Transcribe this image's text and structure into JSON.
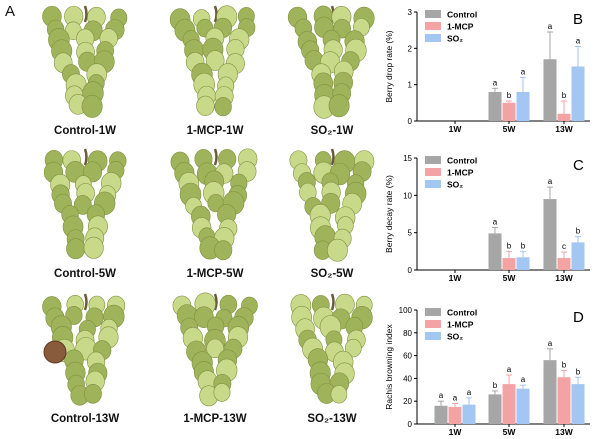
{
  "panel_a": {
    "letter": "A",
    "photos": [
      {
        "label": "Control-1W"
      },
      {
        "label": "1-MCP-1W"
      },
      {
        "label": "SO₂-1W"
      },
      {
        "label": "Control-5W"
      },
      {
        "label": "1-MCP-5W"
      },
      {
        "label": "SO₂-5W"
      },
      {
        "label": "Control-13W"
      },
      {
        "label": "1-MCP-13W"
      },
      {
        "label": "SO₂-13W"
      }
    ]
  },
  "colors": {
    "control": "#a6a6a6",
    "mcp": "#f4a3a5",
    "so2": "#a3c6f2",
    "grape": "#c9d98a",
    "grape_dark": "#9fb35a",
    "stem": "#6b5a3a",
    "coin": "#8a5a3c"
  },
  "chart_data": [
    {
      "panel_letter": "B",
      "type": "bar",
      "ylabel": "Berry drop rate (%)",
      "ylim": [
        0,
        3
      ],
      "yticks": [
        "0",
        "1",
        "2",
        "3"
      ],
      "categories": [
        "1W",
        "5W",
        "13W"
      ],
      "series": [
        {
          "name": "Control",
          "values": [
            0,
            0.8,
            1.7
          ],
          "errors": [
            0,
            0.1,
            0.75
          ],
          "letters": [
            "",
            "a",
            "a"
          ]
        },
        {
          "name": "1-MCP",
          "values": [
            0,
            0.5,
            0.2
          ],
          "errors": [
            0,
            0.05,
            0.35
          ],
          "letters": [
            "",
            "b",
            "b"
          ]
        },
        {
          "name": "SO₂",
          "values": [
            0,
            0.8,
            1.5
          ],
          "errors": [
            0,
            0.4,
            0.55
          ],
          "letters": [
            "",
            "a",
            "a"
          ]
        }
      ]
    },
    {
      "panel_letter": "C",
      "type": "bar",
      "ylabel": "Berry decay rate (%)",
      "ylim": [
        0,
        15
      ],
      "yticks": [
        "0",
        "5",
        "10",
        "15"
      ],
      "categories": [
        "1W",
        "5W",
        "13W"
      ],
      "series": [
        {
          "name": "Control",
          "values": [
            0,
            4.9,
            9.5
          ],
          "errors": [
            0,
            0.8,
            1.6
          ],
          "letters": [
            "",
            "a",
            "a"
          ]
        },
        {
          "name": "1-MCP",
          "values": [
            0,
            1.6,
            1.6
          ],
          "errors": [
            0,
            0.9,
            0.8
          ],
          "letters": [
            "",
            "b",
            "c"
          ]
        },
        {
          "name": "SO₂",
          "values": [
            0,
            1.7,
            3.7
          ],
          "errors": [
            0,
            0.8,
            0.8
          ],
          "letters": [
            "",
            "b",
            "b"
          ]
        }
      ]
    },
    {
      "panel_letter": "D",
      "type": "bar",
      "ylabel": "Rachis browning index",
      "ylim": [
        0,
        100
      ],
      "yticks": [
        "0",
        "20",
        "40",
        "60",
        "80",
        "100"
      ],
      "categories": [
        "1W",
        "5W",
        "13W"
      ],
      "series": [
        {
          "name": "Control",
          "values": [
            16,
            26,
            56
          ],
          "errors": [
            4,
            3,
            10
          ],
          "letters": [
            "a",
            "b",
            "a"
          ]
        },
        {
          "name": "1-MCP",
          "values": [
            15,
            35,
            41
          ],
          "errors": [
            3,
            8,
            6
          ],
          "letters": [
            "a",
            "a",
            "b"
          ]
        },
        {
          "name": "SO₂",
          "values": [
            17,
            31,
            35
          ],
          "errors": [
            6,
            3,
            6
          ],
          "letters": [
            "a",
            "a",
            "b"
          ]
        }
      ]
    }
  ]
}
